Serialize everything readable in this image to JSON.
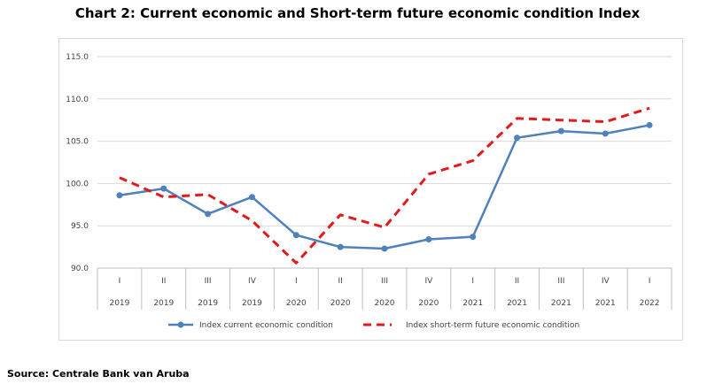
{
  "title": "Chart 2: Current economic and Short-term future economic condition Index",
  "source": "Source: Centrale Bank van Aruba",
  "chart_data": {
    "type": "line",
    "categories": [
      [
        "I",
        "2019"
      ],
      [
        "II",
        "2019"
      ],
      [
        "III",
        "2019"
      ],
      [
        "IV",
        "2019"
      ],
      [
        "I",
        "2020"
      ],
      [
        "II",
        "2020"
      ],
      [
        "III",
        "2020"
      ],
      [
        "IV",
        "2020"
      ],
      [
        "I",
        "2021"
      ],
      [
        "II",
        "2021"
      ],
      [
        "III",
        "2021"
      ],
      [
        "IV",
        "2021"
      ],
      [
        "I",
        "2022"
      ]
    ],
    "series": [
      {
        "name": "Index current economic condition",
        "color": "#4f81bd",
        "style": "solid-with-markers",
        "values": [
          98.6,
          99.4,
          96.4,
          98.4,
          93.9,
          92.5,
          92.3,
          93.4,
          93.7,
          105.4,
          106.2,
          105.9,
          106.9
        ]
      },
      {
        "name": "Index short-term future economic condition",
        "color": "#e31a1c",
        "style": "dashed",
        "values": [
          100.7,
          98.4,
          98.7,
          95.6,
          90.6,
          96.3,
          94.8,
          101.1,
          102.7,
          107.7,
          107.5,
          107.3,
          108.9
        ]
      }
    ],
    "y_ticks": [
      "115.0",
      "110.0",
      "105.0",
      "100.0",
      "95.0",
      "90.0"
    ],
    "ylim": [
      90,
      115
    ],
    "grid": true,
    "legend_position": "bottom"
  }
}
